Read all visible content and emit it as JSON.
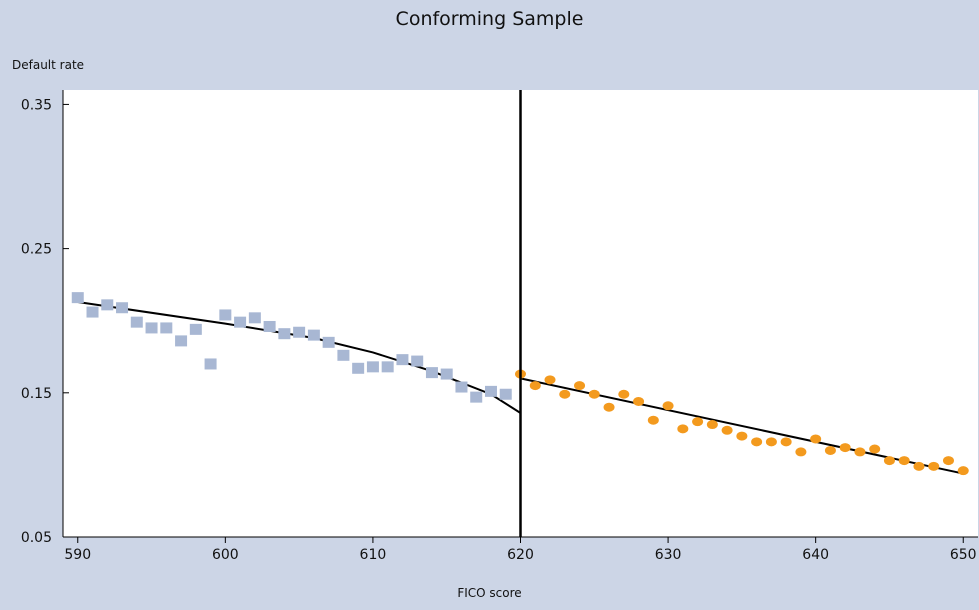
{
  "chart_data": {
    "type": "scatter",
    "title": "Conforming Sample",
    "xlabel": "FICO score",
    "ylabel": "Default rate",
    "xlim": [
      589,
      651
    ],
    "ylim": [
      0.05,
      0.36
    ],
    "x_ticks": [
      590,
      600,
      610,
      620,
      630,
      640,
      650
    ],
    "y_ticks": [
      0.05,
      0.15,
      0.25,
      0.35
    ],
    "y_tick_labels": [
      "0.05",
      "0.15",
      "0.25",
      "0.35"
    ],
    "cutoff_x": 620,
    "grid": false,
    "colors": {
      "left_points": "#a8b7d3",
      "right_points": "#f39a1e",
      "fit_lines": "#000000",
      "plot_background": "#ffffff",
      "page_background": "#ccd5e6"
    },
    "series": [
      {
        "marker": "square",
        "points": [
          [
            590,
            0.216
          ],
          [
            591,
            0.206
          ],
          [
            592,
            0.211
          ],
          [
            593,
            0.209
          ],
          [
            594,
            0.199
          ],
          [
            595,
            0.195
          ],
          [
            596,
            0.195
          ],
          [
            597,
            0.186
          ],
          [
            598,
            0.194
          ],
          [
            599,
            0.17
          ],
          [
            600,
            0.204
          ],
          [
            601,
            0.199
          ],
          [
            602,
            0.202
          ],
          [
            603,
            0.196
          ],
          [
            604,
            0.191
          ],
          [
            605,
            0.192
          ],
          [
            606,
            0.19
          ],
          [
            607,
            0.185
          ],
          [
            608,
            0.176
          ],
          [
            609,
            0.167
          ],
          [
            610,
            0.168
          ],
          [
            611,
            0.168
          ],
          [
            612,
            0.173
          ],
          [
            613,
            0.172
          ],
          [
            614,
            0.164
          ],
          [
            615,
            0.163
          ],
          [
            616,
            0.154
          ],
          [
            617,
            0.147
          ],
          [
            618,
            0.151
          ],
          [
            619,
            0.149
          ]
        ]
      },
      {
        "marker": "circle",
        "points": [
          [
            620,
            0.163
          ],
          [
            621,
            0.155
          ],
          [
            622,
            0.159
          ],
          [
            623,
            0.149
          ],
          [
            624,
            0.155
          ],
          [
            625,
            0.149
          ],
          [
            626,
            0.14
          ],
          [
            627,
            0.149
          ],
          [
            628,
            0.144
          ],
          [
            629,
            0.131
          ],
          [
            630,
            0.141
          ],
          [
            631,
            0.125
          ],
          [
            632,
            0.13
          ],
          [
            633,
            0.128
          ],
          [
            634,
            0.124
          ],
          [
            635,
            0.12
          ],
          [
            636,
            0.116
          ],
          [
            637,
            0.116
          ],
          [
            638,
            0.116
          ],
          [
            639,
            0.109
          ],
          [
            640,
            0.118
          ],
          [
            641,
            0.11
          ],
          [
            642,
            0.112
          ],
          [
            643,
            0.109
          ],
          [
            644,
            0.111
          ],
          [
            645,
            0.103
          ],
          [
            646,
            0.103
          ],
          [
            647,
            0.099
          ],
          [
            648,
            0.099
          ],
          [
            649,
            0.103
          ],
          [
            650,
            0.096
          ]
        ]
      }
    ],
    "fit_lines": [
      {
        "points": [
          [
            590,
            0.213
          ],
          [
            600,
            0.198
          ],
          [
            606,
            0.188
          ],
          [
            610,
            0.178
          ],
          [
            614,
            0.165
          ],
          [
            618,
            0.149
          ],
          [
            620,
            0.136
          ]
        ]
      },
      {
        "points": [
          [
            620,
            0.16
          ],
          [
            650,
            0.094
          ]
        ]
      }
    ]
  }
}
